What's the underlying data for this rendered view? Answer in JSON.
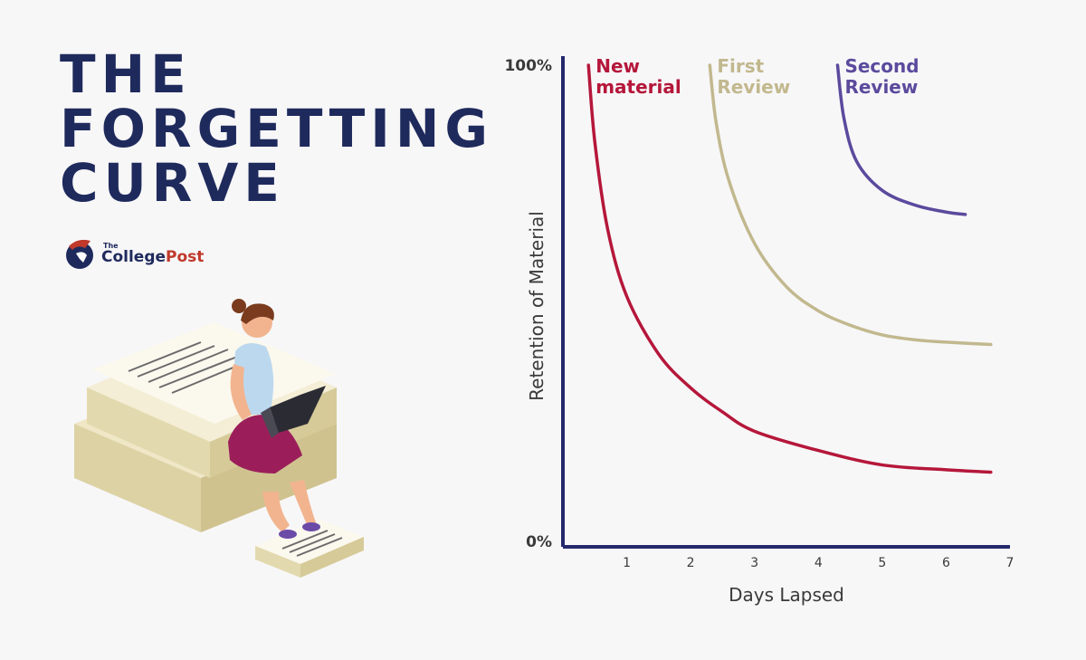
{
  "header": {
    "title_lines": [
      "THE",
      "FORGETTING",
      "CURVE"
    ]
  },
  "logo": {
    "small": "The",
    "name_part1": "College",
    "name_part2": "Post"
  },
  "illustration": {
    "name": "student-on-papers-illustration"
  },
  "colors": {
    "title": "#1f2a5c",
    "axis": "#24286b",
    "new_material": "#b5173a",
    "first_review": "#c2b88e",
    "second_review": "#5b4a9d",
    "logo_red": "#c0392b"
  },
  "chart_data": {
    "type": "line",
    "ylabel": "Retention of Material",
    "xlabel": "Days Lapsed",
    "y_tick_labels": [
      "100%",
      "0%"
    ],
    "ylim": [
      0,
      100
    ],
    "xlim": [
      0,
      7
    ],
    "x_ticks": [
      1,
      2,
      3,
      4,
      5,
      6,
      7
    ],
    "grid": false,
    "series": [
      {
        "name": "New material",
        "label_lines": [
          "New",
          "material"
        ],
        "color": "#b5173a",
        "x": [
          0.4,
          0.5,
          0.7,
          1.0,
          1.5,
          2.0,
          2.5,
          3.0,
          4.0,
          5.0,
          6.0,
          6.7
        ],
        "y": [
          100,
          84,
          66,
          52,
          40,
          33,
          28,
          24,
          20,
          17,
          16,
          15.5
        ]
      },
      {
        "name": "First Review",
        "label_lines": [
          "First",
          "Review"
        ],
        "color": "#c2b88e",
        "x": [
          2.3,
          2.4,
          2.6,
          3.0,
          3.5,
          4.0,
          4.5,
          5.0,
          5.5,
          6.0,
          6.7
        ],
        "y": [
          100,
          88,
          76,
          63,
          54,
          49,
          46,
          44,
          43,
          42.5,
          42
        ]
      },
      {
        "name": "Second Review",
        "label_lines": [
          "Second",
          "Review"
        ],
        "color": "#5b4a9d",
        "x": [
          4.3,
          4.4,
          4.6,
          5.0,
          5.5,
          6.0,
          6.3
        ],
        "y": [
          100,
          89,
          80,
          74,
          71,
          69.5,
          69
        ]
      }
    ]
  }
}
